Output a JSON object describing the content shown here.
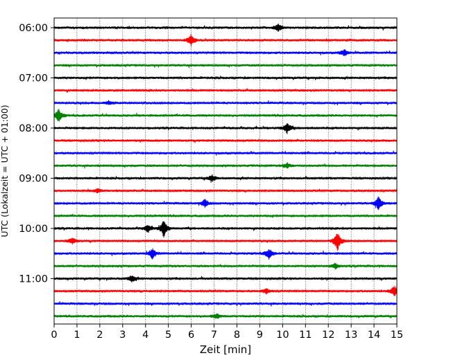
{
  "chart_data": {
    "type": "line",
    "xlabel": "Zeit  [min]",
    "ylabel": "UTC (Lokalzeit = UTC + 01:00)",
    "xlim": [
      0,
      15
    ],
    "x_ticks": [
      "0",
      "1",
      "2",
      "3",
      "4",
      "5",
      "6",
      "7",
      "8",
      "9",
      "10",
      "11",
      "12",
      "13",
      "14",
      "15"
    ],
    "y_tick_labels": [
      "06:00",
      "07:00",
      "08:00",
      "09:00",
      "10:00",
      "11:00"
    ],
    "grid_x": true,
    "trace_interval_min": 15,
    "trace_count": 24,
    "trace_colors": [
      "#000000",
      "#ff0000",
      "#0000ff",
      "#008000"
    ],
    "trace_start_times": [
      "06:00",
      "06:15",
      "06:30",
      "06:45",
      "07:00",
      "07:15",
      "07:30",
      "07:45",
      "08:00",
      "08:15",
      "08:30",
      "08:45",
      "09:00",
      "09:15",
      "09:30",
      "09:45",
      "10:00",
      "10:15",
      "10:30",
      "10:45",
      "11:00",
      "11:15",
      "11:30",
      "11:45"
    ],
    "events": [
      {
        "trace": 0,
        "minute": 9.8,
        "amplitude": 6
      },
      {
        "trace": 1,
        "minute": 6.0,
        "amplitude": 9
      },
      {
        "trace": 2,
        "minute": 12.7,
        "amplitude": 5
      },
      {
        "trace": 6,
        "minute": 2.4,
        "amplitude": 3
      },
      {
        "trace": 7,
        "minute": 0.2,
        "amplitude": 10
      },
      {
        "trace": 8,
        "minute": 10.2,
        "amplitude": 8
      },
      {
        "trace": 11,
        "minute": 10.2,
        "amplitude": 4
      },
      {
        "trace": 12,
        "minute": 6.9,
        "amplitude": 5
      },
      {
        "trace": 13,
        "minute": 1.9,
        "amplitude": 3
      },
      {
        "trace": 14,
        "minute": 6.6,
        "amplitude": 6
      },
      {
        "trace": 14,
        "minute": 14.2,
        "amplitude": 10
      },
      {
        "trace": 16,
        "minute": 4.8,
        "amplitude": 13
      },
      {
        "trace": 16,
        "minute": 4.1,
        "amplitude": 6
      },
      {
        "trace": 17,
        "minute": 0.8,
        "amplitude": 5
      },
      {
        "trace": 17,
        "minute": 12.4,
        "amplitude": 16
      },
      {
        "trace": 18,
        "minute": 4.3,
        "amplitude": 8
      },
      {
        "trace": 18,
        "minute": 9.4,
        "amplitude": 8
      },
      {
        "trace": 19,
        "minute": 12.3,
        "amplitude": 4
      },
      {
        "trace": 20,
        "minute": 3.4,
        "amplitude": 5
      },
      {
        "trace": 21,
        "minute": 14.9,
        "amplitude": 8
      },
      {
        "trace": 21,
        "minute": 9.3,
        "amplitude": 4
      },
      {
        "trace": 23,
        "minute": 7.1,
        "amplitude": 4
      }
    ]
  }
}
